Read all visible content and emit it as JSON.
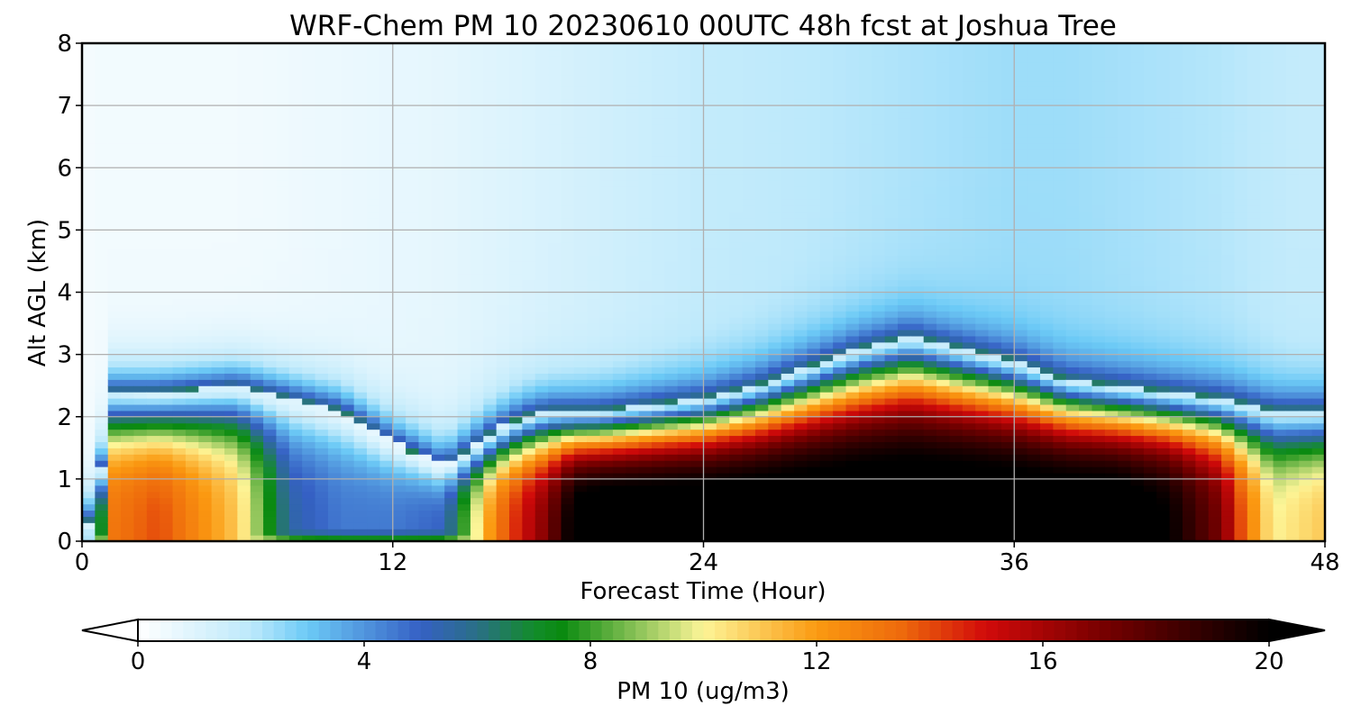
{
  "chart_data": {
    "type": "heatmap",
    "title": "WRF-Chem PM 10  20230610 00UTC 48h fcst at Joshua Tree",
    "xlabel": "Forecast Time (Hour)",
    "ylabel": "Alt AGL (km)",
    "xlim": [
      0,
      48
    ],
    "ylim": [
      0,
      8
    ],
    "xticks": [
      0,
      12,
      24,
      36,
      48
    ],
    "yticks": [
      0,
      1,
      2,
      3,
      4,
      5,
      6,
      7,
      8
    ],
    "grid": true,
    "x_hours": [
      0,
      0.7,
      1,
      3,
      6,
      8,
      10,
      12,
      14,
      15,
      16,
      17,
      18,
      19,
      20,
      22,
      24,
      26,
      28,
      30,
      32,
      34,
      36,
      38,
      40,
      42,
      44,
      45,
      46,
      47,
      48
    ],
    "profiles": [
      {
        "h": 0,
        "top": 0.0,
        "peak": 0,
        "base": 0.0,
        "upper": 0.3
      },
      {
        "h": 0.7,
        "top": 0.9,
        "peak": 6,
        "base": 1.2,
        "upper": 0.4
      },
      {
        "h": 1,
        "top": 2.4,
        "peak": 13,
        "base": 1.5,
        "upper": 0.4
      },
      {
        "h": 3,
        "top": 2.4,
        "peak": 14,
        "base": 1.0,
        "upper": 0.4
      },
      {
        "h": 6,
        "top": 2.5,
        "peak": 11,
        "base": 1.0,
        "upper": 0.4
      },
      {
        "h": 8,
        "top": 2.3,
        "peak": 5.5,
        "base": 0.8,
        "upper": 0.5
      },
      {
        "h": 10,
        "top": 2.1,
        "peak": 4.5,
        "base": 0.6,
        "upper": 0.6
      },
      {
        "h": 12,
        "top": 1.6,
        "peak": 4.5,
        "base": 0.5,
        "upper": 0.7
      },
      {
        "h": 14,
        "top": 1.2,
        "peak": 5,
        "base": 0.5,
        "upper": 0.8
      },
      {
        "h": 15,
        "top": 1.5,
        "peak": 9,
        "base": 0.7,
        "upper": 0.9
      },
      {
        "h": 16,
        "top": 1.8,
        "peak": 13,
        "base": 0.9,
        "upper": 1.0
      },
      {
        "h": 17,
        "top": 2.0,
        "peak": 15,
        "base": 1.1,
        "upper": 1.1
      },
      {
        "h": 18,
        "top": 2.1,
        "peak": 17,
        "base": 1.3,
        "upper": 1.2
      },
      {
        "h": 19,
        "top": 2.1,
        "peak": 20.5,
        "base": 1.4,
        "upper": 1.3
      },
      {
        "h": 20,
        "top": 2.1,
        "peak": 21,
        "base": 1.4,
        "upper": 1.4
      },
      {
        "h": 22,
        "top": 2.2,
        "peak": 21,
        "base": 1.4,
        "upper": 1.6
      },
      {
        "h": 24,
        "top": 2.3,
        "peak": 21,
        "base": 1.4,
        "upper": 1.8
      },
      {
        "h": 26,
        "top": 2.5,
        "peak": 21,
        "base": 1.4,
        "upper": 1.9
      },
      {
        "h": 28,
        "top": 2.8,
        "peak": 21,
        "base": 1.4,
        "upper": 2.0
      },
      {
        "h": 30,
        "top": 3.1,
        "peak": 21,
        "base": 1.4,
        "upper": 2.1
      },
      {
        "h": 32,
        "top": 3.3,
        "peak": 21,
        "base": 1.4,
        "upper": 2.2
      },
      {
        "h": 34,
        "top": 3.1,
        "peak": 21,
        "base": 1.4,
        "upper": 2.3
      },
      {
        "h": 36,
        "top": 2.9,
        "peak": 21,
        "base": 1.4,
        "upper": 2.4
      },
      {
        "h": 38,
        "top": 2.6,
        "peak": 21,
        "base": 1.4,
        "upper": 2.4
      },
      {
        "h": 40,
        "top": 2.5,
        "peak": 21,
        "base": 1.4,
        "upper": 2.3
      },
      {
        "h": 42,
        "top": 2.4,
        "peak": 20,
        "base": 1.4,
        "upper": 2.2
      },
      {
        "h": 44,
        "top": 2.3,
        "peak": 17,
        "base": 1.5,
        "upper": 2.1
      },
      {
        "h": 45,
        "top": 2.2,
        "peak": 13,
        "base": 1.5,
        "upper": 2.0
      },
      {
        "h": 46,
        "top": 2.1,
        "peak": 10,
        "base": 1.5,
        "upper": 1.9
      },
      {
        "h": 47,
        "top": 2.1,
        "peak": 10.5,
        "base": 1.5,
        "upper": 1.8
      },
      {
        "h": 48,
        "top": 2.1,
        "peak": 11,
        "base": 1.5,
        "upper": 1.8
      }
    ],
    "colorbar": {
      "label": "PM 10  (ug/m3)",
      "ticks": [
        0,
        4,
        8,
        12,
        16,
        20
      ],
      "range": [
        0,
        20
      ],
      "extend": "both",
      "stops": [
        {
          "v": 0,
          "color": "#ffffff"
        },
        {
          "v": 2,
          "color": "#bde9fb"
        },
        {
          "v": 3,
          "color": "#6ccaf6"
        },
        {
          "v": 5,
          "color": "#3560c4"
        },
        {
          "v": 6,
          "color": "#2a6f86"
        },
        {
          "v": 7,
          "color": "#138c2b"
        },
        {
          "v": 7.5,
          "color": "#0a8a10"
        },
        {
          "v": 10,
          "color": "#fdf597"
        },
        {
          "v": 12,
          "color": "#fb9a11"
        },
        {
          "v": 13.5,
          "color": "#ee6a0c"
        },
        {
          "v": 15,
          "color": "#d10a0a"
        },
        {
          "v": 17,
          "color": "#7a0000"
        },
        {
          "v": 20,
          "color": "#000000"
        }
      ]
    }
  }
}
